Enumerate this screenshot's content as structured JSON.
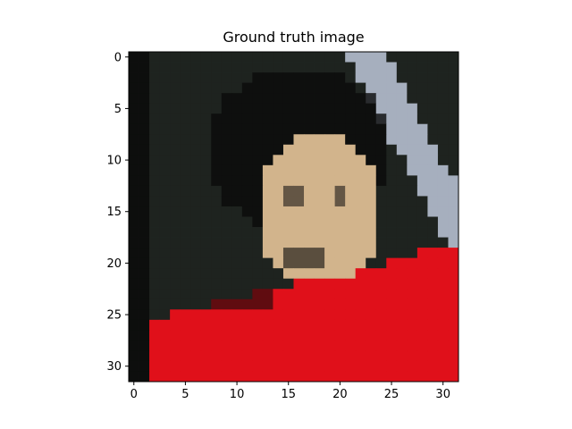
{
  "chart_data": {
    "type": "heatmap",
    "title": "Ground truth image",
    "xlabel": "",
    "ylabel": "",
    "image_size": [
      32,
      32
    ],
    "xlim": [
      -0.5,
      31.5
    ],
    "ylim": [
      31.5,
      -0.5
    ],
    "x_ticks": [
      "0",
      "5",
      "10",
      "15",
      "20",
      "25",
      "30"
    ],
    "y_ticks": [
      "0",
      "5",
      "10",
      "15",
      "20",
      "25",
      "30"
    ],
    "grid": false,
    "legend": "none",
    "palette": {
      "dark_background": "#1e231f",
      "skin_tone": "#d2b48c",
      "hair_shadow": "#0a0a0a",
      "red_shirt": "#e0101a",
      "light_stripe": "#c8d2e6"
    }
  }
}
